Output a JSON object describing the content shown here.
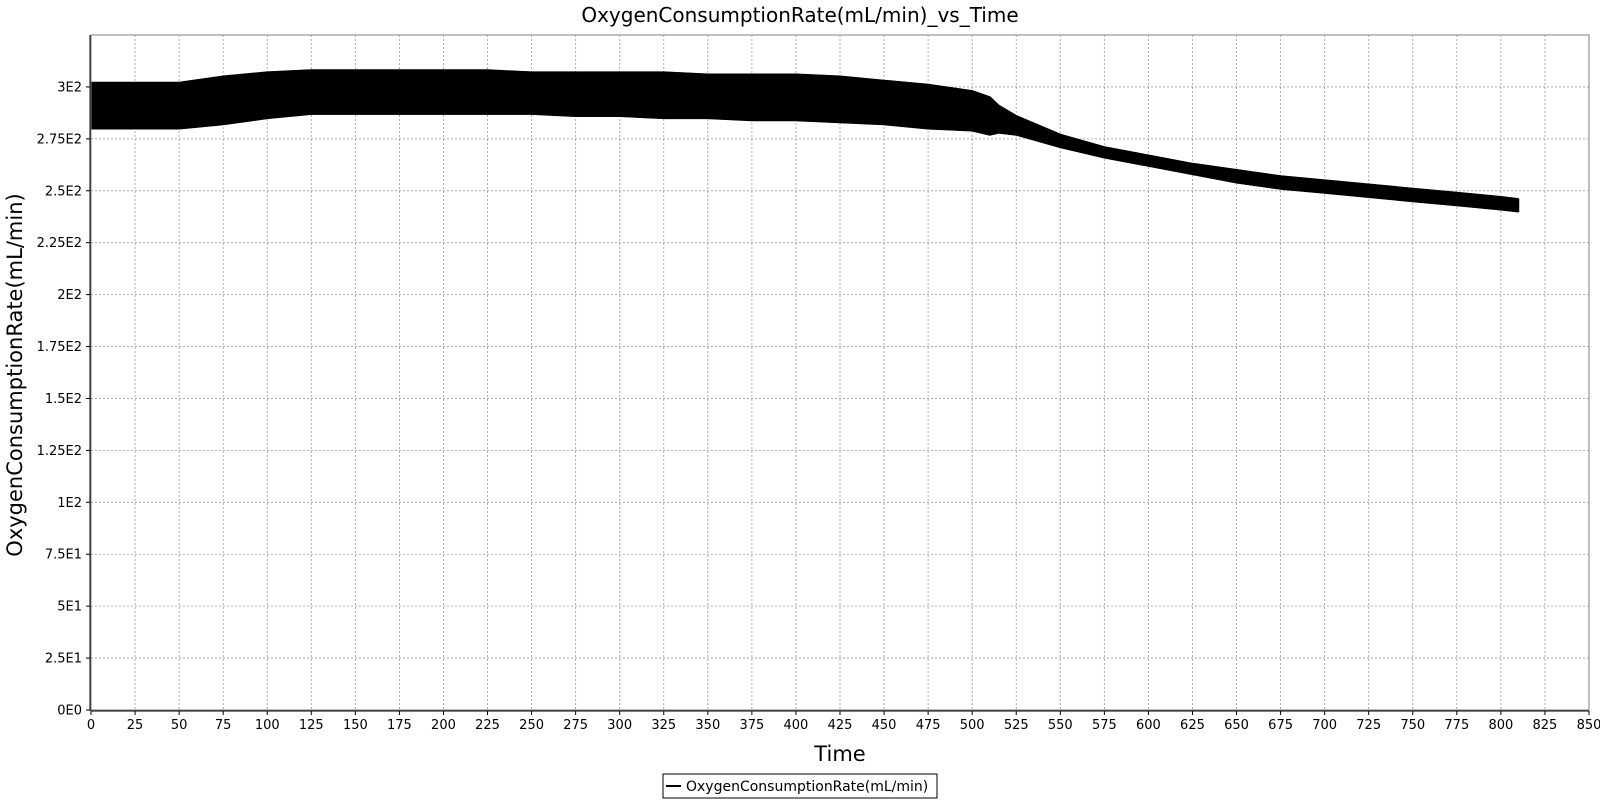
{
  "chart_data": {
    "type": "line",
    "title": "OxygenConsumptionRate(mL/min)_vs_Time",
    "xlabel": "Time",
    "ylabel": "OxygenConsumptionRate(mL/min)",
    "xlim": [
      0,
      850
    ],
    "ylim": [
      0,
      325
    ],
    "x_ticks": [
      0,
      25,
      50,
      75,
      100,
      125,
      150,
      175,
      200,
      225,
      250,
      275,
      300,
      325,
      350,
      375,
      400,
      425,
      450,
      475,
      500,
      525,
      550,
      575,
      600,
      625,
      650,
      675,
      700,
      725,
      750,
      775,
      800,
      825,
      850
    ],
    "x_tick_labels": [
      "0",
      "25",
      "50",
      "75",
      "100",
      "125",
      "150",
      "175",
      "200",
      "225",
      "250",
      "275",
      "300",
      "325",
      "350",
      "375",
      "400",
      "425",
      "450",
      "475",
      "500",
      "525",
      "550",
      "575",
      "600",
      "625",
      "650",
      "675",
      "700",
      "725",
      "750",
      "775",
      "800",
      "825",
      "850"
    ],
    "y_ticks": [
      0,
      25,
      50,
      75,
      100,
      125,
      150,
      175,
      200,
      225,
      250,
      275,
      300
    ],
    "y_tick_labels": [
      "0E0",
      "2.5E1",
      "5E1",
      "7.5E1",
      "1E2",
      "1.25E2",
      "1.5E2",
      "1.75E2",
      "2E2",
      "2.25E2",
      "2.5E2",
      "2.75E2",
      "3E2"
    ],
    "grid": true,
    "legend": "bottom-center",
    "series": [
      {
        "name": "OxygenConsumptionRate(mL/min)",
        "color": "#000000",
        "x": [
          0,
          25,
          50,
          75,
          100,
          125,
          150,
          175,
          200,
          225,
          250,
          275,
          300,
          325,
          350,
          375,
          400,
          425,
          450,
          475,
          500,
          510,
          515,
          525,
          550,
          575,
          600,
          625,
          650,
          675,
          700,
          725,
          750,
          775,
          800,
          810
        ],
        "upper": [
          302,
          302,
          302,
          305,
          307,
          308,
          308,
          308,
          308,
          308,
          307,
          307,
          307,
          307,
          306,
          306,
          306,
          305,
          303,
          301,
          298,
          295,
          291,
          286,
          277,
          271,
          267,
          263,
          260,
          257,
          255,
          253,
          251,
          249,
          247,
          246
        ],
        "lower": [
          280,
          280,
          280,
          282,
          285,
          287,
          287,
          287,
          287,
          287,
          287,
          286,
          286,
          285,
          285,
          284,
          284,
          283,
          282,
          280,
          279,
          277,
          278,
          277,
          271,
          266,
          262,
          258,
          254,
          251,
          249,
          247,
          245,
          243,
          241,
          240
        ]
      }
    ]
  }
}
